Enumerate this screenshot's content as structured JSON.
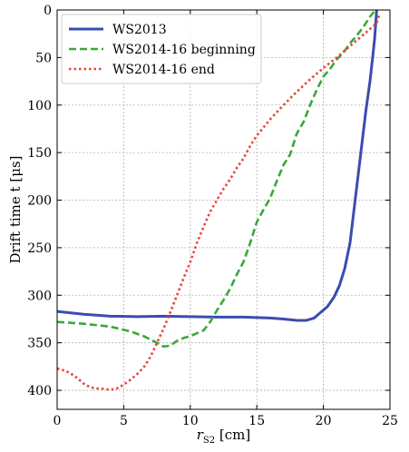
{
  "chart_data": {
    "type": "line",
    "xlabel_main": "r",
    "xlabel_sub": "S2",
    "xlabel_unit": " [cm]",
    "ylabel": "Drift time t [μs]",
    "xlim": [
      0,
      25
    ],
    "ylim": [
      420,
      0
    ],
    "y_inverted": true,
    "x_ticks": [
      0,
      5,
      10,
      15,
      20,
      25
    ],
    "y_ticks": [
      0,
      50,
      100,
      150,
      200,
      250,
      300,
      350,
      400
    ],
    "grid": true,
    "grid_style": "dotted",
    "legend_position": "upper-left",
    "series": [
      {
        "name": "WS2013",
        "color": "#3b4cb0",
        "style": "solid",
        "points": [
          [
            0,
            317
          ],
          [
            2,
            320
          ],
          [
            4,
            322
          ],
          [
            6,
            322.5
          ],
          [
            8,
            322
          ],
          [
            10,
            322.5
          ],
          [
            12,
            323
          ],
          [
            14,
            323
          ],
          [
            16,
            324
          ],
          [
            17,
            325
          ],
          [
            18,
            326.5
          ],
          [
            18.7,
            326.5
          ],
          [
            19.3,
            324
          ],
          [
            19.8,
            318
          ],
          [
            20.3,
            312
          ],
          [
            20.8,
            302
          ],
          [
            21.2,
            290
          ],
          [
            21.6,
            272
          ],
          [
            22,
            245
          ],
          [
            22.3,
            210
          ],
          [
            22.6,
            175
          ],
          [
            22.9,
            140
          ],
          [
            23.2,
            105
          ],
          [
            23.5,
            75
          ],
          [
            23.7,
            50
          ],
          [
            23.85,
            30
          ],
          [
            23.95,
            10
          ],
          [
            24,
            0
          ]
        ]
      },
      {
        "name": "WS2014-16 beginning",
        "color": "#3aa83a",
        "style": "dashed",
        "points": [
          [
            0,
            328
          ],
          [
            2,
            330
          ],
          [
            4,
            333
          ],
          [
            5.5,
            338
          ],
          [
            6.5,
            343
          ],
          [
            7.5,
            350
          ],
          [
            8,
            354
          ],
          [
            8.5,
            353
          ],
          [
            9,
            348
          ],
          [
            9.5,
            345
          ],
          [
            10,
            343
          ],
          [
            10.5,
            340
          ],
          [
            11,
            337
          ],
          [
            11.5,
            328
          ],
          [
            12,
            316
          ],
          [
            12.5,
            305
          ],
          [
            13,
            293
          ],
          [
            13.5,
            278
          ],
          [
            14,
            265
          ],
          [
            14.5,
            245
          ],
          [
            15,
            223
          ],
          [
            15.5,
            210
          ],
          [
            16,
            198
          ],
          [
            16.5,
            180
          ],
          [
            17,
            163
          ],
          [
            17.5,
            152
          ],
          [
            18,
            130
          ],
          [
            18.5,
            118
          ],
          [
            19,
            100
          ],
          [
            19.5,
            84
          ],
          [
            20,
            70
          ],
          [
            20.5,
            62
          ],
          [
            21,
            52
          ],
          [
            21.5,
            45
          ],
          [
            22,
            35
          ],
          [
            22.5,
            27
          ],
          [
            23,
            18
          ],
          [
            23.5,
            7
          ],
          [
            23.8,
            2
          ]
        ]
      },
      {
        "name": "WS2014-16 end",
        "color": "#e8453c",
        "style": "dotted",
        "points": [
          [
            0,
            377
          ],
          [
            0.5,
            379
          ],
          [
            1,
            382
          ],
          [
            1.5,
            387
          ],
          [
            2,
            393
          ],
          [
            2.5,
            397
          ],
          [
            3,
            398
          ],
          [
            3.5,
            398.5
          ],
          [
            4,
            399.5
          ],
          [
            4.5,
            398
          ],
          [
            5,
            394
          ],
          [
            5.5,
            389
          ],
          [
            6,
            383
          ],
          [
            6.5,
            376
          ],
          [
            7,
            365
          ],
          [
            7.5,
            350
          ],
          [
            8,
            335
          ],
          [
            8.5,
            318
          ],
          [
            9,
            300
          ],
          [
            9.5,
            282
          ],
          [
            10,
            265
          ],
          [
            10.5,
            245
          ],
          [
            11,
            228
          ],
          [
            11.5,
            212
          ],
          [
            12,
            200
          ],
          [
            12.5,
            188
          ],
          [
            13,
            178
          ],
          [
            13.5,
            166
          ],
          [
            14,
            156
          ],
          [
            14.5,
            143
          ],
          [
            15,
            132
          ],
          [
            16,
            115
          ],
          [
            17,
            100
          ],
          [
            18,
            86
          ],
          [
            19,
            73
          ],
          [
            20,
            61
          ],
          [
            21,
            50
          ],
          [
            22,
            38
          ],
          [
            23,
            26
          ],
          [
            23.5,
            20
          ],
          [
            24,
            14
          ],
          [
            24.2,
            5
          ]
        ]
      }
    ]
  }
}
